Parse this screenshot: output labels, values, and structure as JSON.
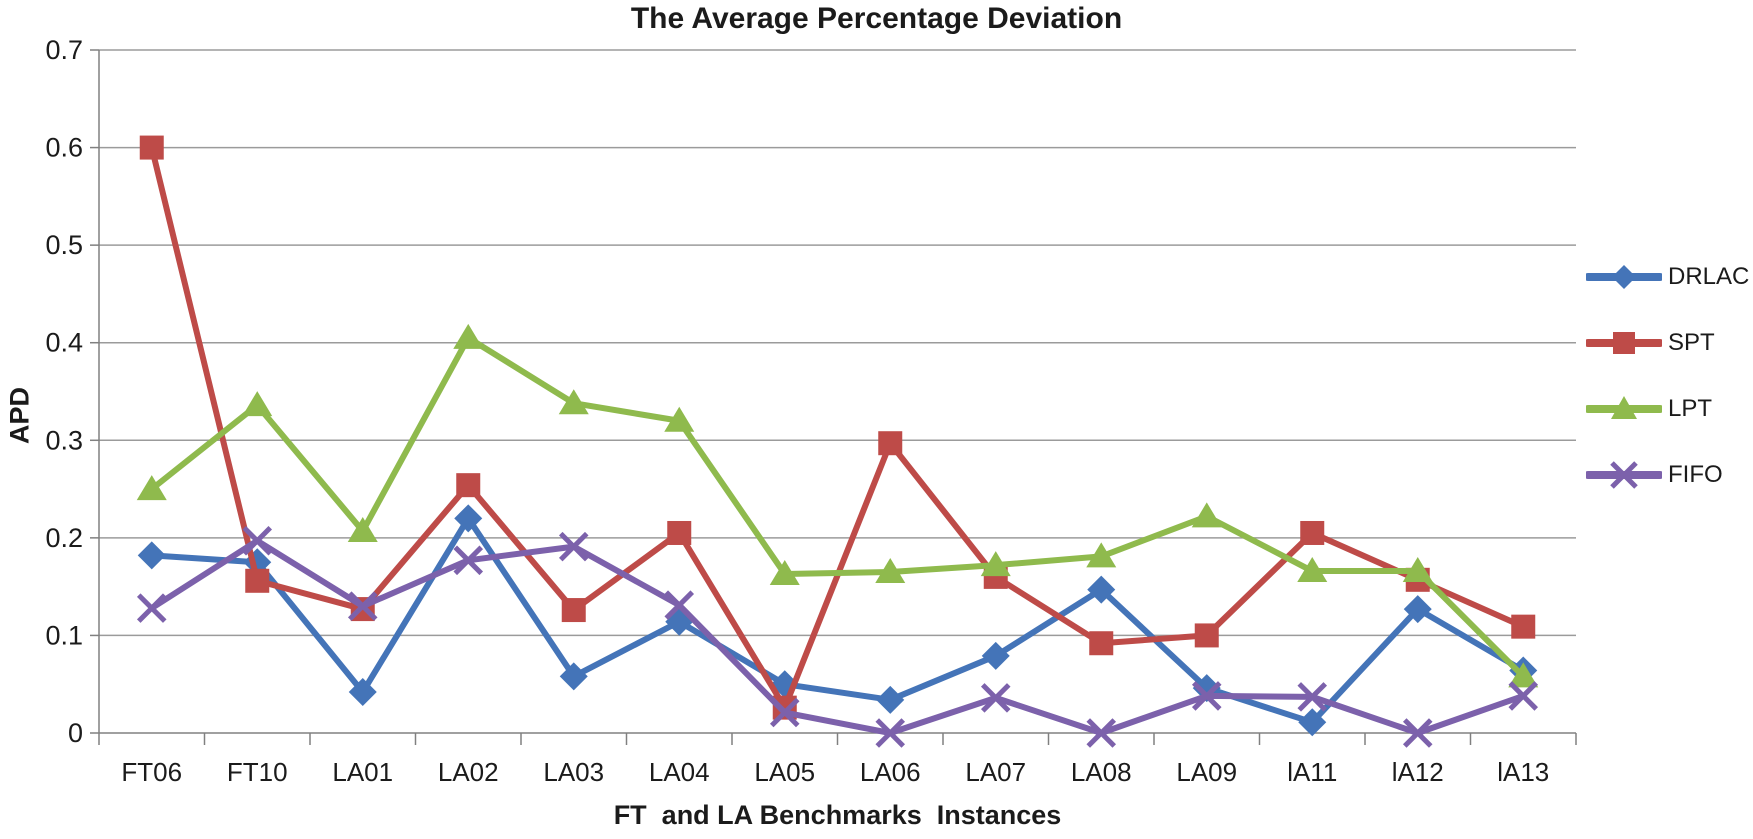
{
  "chart_data": {
    "type": "line",
    "title": "The Average Percentage Deviation",
    "xlabel": "FT  and LA Benchmarks  Instances",
    "ylabel": "APD",
    "ylim": [
      0,
      0.7
    ],
    "ytick_step": 0.1,
    "ytick_labels": [
      "0",
      "0.1",
      "0.2",
      "0.3",
      "0.4",
      "0.5",
      "0.6",
      "0.7"
    ],
    "grid": true,
    "legend_position": "right",
    "categories": [
      "FT06",
      "FT10",
      "LA01",
      "LA02",
      "LA03",
      "LA04",
      "LA05",
      "LA06",
      "LA07",
      "LA08",
      "LA09",
      "lA11",
      "lA12",
      "lA13"
    ],
    "series": [
      {
        "name": "DRLAC",
        "marker": "diamond",
        "color": "#4474B8",
        "values": [
          0.182,
          0.175,
          0.042,
          0.22,
          0.058,
          0.114,
          0.05,
          0.034,
          0.079,
          0.147,
          0.046,
          0.011,
          0.127,
          0.064
        ]
      },
      {
        "name": "SPT",
        "marker": "square",
        "color": "#BE4B48",
        "values": [
          0.6,
          0.156,
          0.127,
          0.254,
          0.126,
          0.205,
          0.026,
          0.297,
          0.16,
          0.092,
          0.1,
          0.205,
          0.157,
          0.109
        ]
      },
      {
        "name": "LPT",
        "marker": "triangle",
        "color": "#8FBA4D",
        "values": [
          0.25,
          0.336,
          0.207,
          0.405,
          0.338,
          0.32,
          0.163,
          0.165,
          0.172,
          0.181,
          0.222,
          0.166,
          0.166,
          0.058
        ]
      },
      {
        "name": "FIFO",
        "marker": "x",
        "color": "#7C61AB",
        "values": [
          0.128,
          0.197,
          0.13,
          0.177,
          0.191,
          0.131,
          0.021,
          0.0,
          0.036,
          0.0,
          0.038,
          0.037,
          0.0,
          0.038
        ]
      }
    ]
  },
  "colors": {
    "gridline": "#9B9B9B",
    "axis": "#808080",
    "text": "#1B1B1B",
    "background": "#FFFFFF"
  }
}
